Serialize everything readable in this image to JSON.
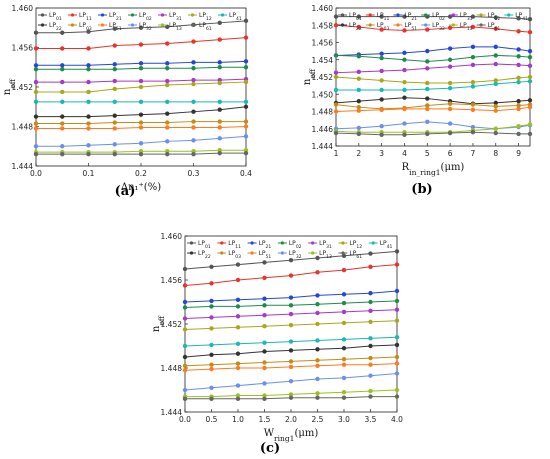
{
  "chart_data": [
    {
      "type": "line",
      "panel_label": "(a)",
      "xlabel": "Δn₁⁺(%)",
      "ylabel": "n_eff",
      "xlim": [
        0,
        0.4
      ],
      "ylim": [
        1.444,
        1.46
      ],
      "xticks": [
        "0.0",
        "0.1",
        "0.2",
        "0.3",
        "0.4"
      ],
      "yticks": [
        "1.444",
        "1.448",
        "1.452",
        "1.456",
        "1.460"
      ],
      "legend_position": "top",
      "x": [
        0,
        0.05,
        0.1,
        0.15,
        0.2,
        0.25,
        0.3,
        0.35,
        0.4
      ],
      "series": [
        {
          "name": "LP01",
          "color": "#555555",
          "values": [
            1.4575,
            1.4575,
            1.4576,
            1.4579,
            1.458,
            1.4581,
            1.4583,
            1.4585,
            1.4587
          ]
        },
        {
          "name": "LP11",
          "color": "#e8332a",
          "values": [
            1.4559,
            1.4559,
            1.4559,
            1.4562,
            1.4563,
            1.4564,
            1.4566,
            1.4568,
            1.457
          ]
        },
        {
          "name": "LP21",
          "color": "#2447d8",
          "values": [
            1.4542,
            1.4542,
            1.4542,
            1.4543,
            1.4544,
            1.4544,
            1.4545,
            1.4545,
            1.4546
          ]
        },
        {
          "name": "LP02",
          "color": "#1e8c4a",
          "values": [
            1.4538,
            1.4538,
            1.4538,
            1.4538,
            1.4539,
            1.4539,
            1.4539,
            1.454,
            1.454
          ]
        },
        {
          "name": "LP31",
          "color": "#a838c8",
          "values": [
            1.4525,
            1.4525,
            1.4525,
            1.4526,
            1.4526,
            1.4526,
            1.4527,
            1.4527,
            1.4528
          ]
        },
        {
          "name": "LP12",
          "color": "#a8a81a",
          "values": [
            1.4515,
            1.4515,
            1.4515,
            1.4518,
            1.452,
            1.4522,
            1.4523,
            1.4524,
            1.4525
          ]
        },
        {
          "name": "LP41",
          "color": "#1ab8b8",
          "values": [
            1.4505,
            1.4505,
            1.4505,
            1.4505,
            1.4505,
            1.4505,
            1.4505,
            1.4505,
            1.4505
          ]
        },
        {
          "name": "LP22",
          "color": "#333333",
          "values": [
            1.449,
            1.449,
            1.449,
            1.4491,
            1.4492,
            1.4493,
            1.4495,
            1.4497,
            1.45
          ]
        },
        {
          "name": "LP03",
          "color": "#c88a14",
          "values": [
            1.4483,
            1.4483,
            1.4483,
            1.4484,
            1.4484,
            1.4484,
            1.4485,
            1.4485,
            1.4485
          ]
        },
        {
          "name": "LP51",
          "color": "#ff7a1e",
          "values": [
            1.4478,
            1.4478,
            1.4478,
            1.4478,
            1.4479,
            1.4479,
            1.4479,
            1.4479,
            1.448
          ]
        },
        {
          "name": "LP32",
          "color": "#6a8ff0",
          "values": [
            1.446,
            1.446,
            1.4461,
            1.4462,
            1.4463,
            1.4465,
            1.4466,
            1.4468,
            1.447
          ]
        },
        {
          "name": "LP13",
          "color": "#9ac21e",
          "values": [
            1.4454,
            1.4454,
            1.4454,
            1.4454,
            1.4455,
            1.4455,
            1.4455,
            1.4456,
            1.4456
          ]
        },
        {
          "name": "LP61",
          "color": "#666666",
          "values": [
            1.4452,
            1.4452,
            1.4452,
            1.4452,
            1.4452,
            1.4452,
            1.4452,
            1.4453,
            1.4453
          ]
        }
      ]
    },
    {
      "type": "line",
      "panel_label": "(b)",
      "xlabel": "R_in_ring1(μm)",
      "ylabel": "n_eff",
      "xlim": [
        1,
        9.5
      ],
      "ylim": [
        1.444,
        1.46
      ],
      "xticks": [
        "1",
        "2",
        "3",
        "4",
        "5",
        "6",
        "7",
        "8",
        "9"
      ],
      "yticks": [
        "1.444",
        "1.446",
        "1.448",
        "1.450",
        "1.452",
        "1.454",
        "1.456",
        "1.458",
        "1.460"
      ],
      "legend_position": "top",
      "x": [
        1,
        2,
        3,
        4,
        5,
        6,
        7,
        8,
        9,
        9.5
      ],
      "series": [
        {
          "name": "LP01",
          "color": "#555555",
          "values": [
            1.459,
            1.459,
            1.459,
            1.459,
            1.459,
            1.459,
            1.459,
            1.4589,
            1.4588,
            1.4587
          ]
        },
        {
          "name": "LP11",
          "color": "#e8332a",
          "values": [
            1.458,
            1.4578,
            1.4575,
            1.4574,
            1.4575,
            1.4577,
            1.4578,
            1.4576,
            1.4573,
            1.4572
          ]
        },
        {
          "name": "LP21",
          "color": "#2447d8",
          "values": [
            1.4545,
            1.4546,
            1.4547,
            1.4548,
            1.455,
            1.4553,
            1.4555,
            1.4555,
            1.4552,
            1.455
          ]
        },
        {
          "name": "LP02",
          "color": "#1e8c4a",
          "values": [
            1.4545,
            1.4544,
            1.4542,
            1.454,
            1.4538,
            1.454,
            1.4543,
            1.4545,
            1.4544,
            1.4543
          ]
        },
        {
          "name": "LP31",
          "color": "#a838c8",
          "values": [
            1.4525,
            1.4526,
            1.4527,
            1.4528,
            1.453,
            1.4532,
            1.4534,
            1.4535,
            1.4534,
            1.4533
          ]
        },
        {
          "name": "LP12",
          "color": "#a8a81a",
          "values": [
            1.452,
            1.4518,
            1.4516,
            1.4514,
            1.4513,
            1.4513,
            1.4514,
            1.4516,
            1.4519,
            1.452
          ]
        },
        {
          "name": "LP41",
          "color": "#1ab8b8",
          "values": [
            1.4505,
            1.4505,
            1.4505,
            1.4505,
            1.4506,
            1.4507,
            1.4509,
            1.4512,
            1.4514,
            1.4515
          ]
        },
        {
          "name": "LP22",
          "color": "#333333",
          "values": [
            1.449,
            1.4492,
            1.4494,
            1.4496,
            1.4495,
            1.4492,
            1.4489,
            1.449,
            1.4492,
            1.4493
          ]
        },
        {
          "name": "LP03",
          "color": "#c88a14",
          "values": [
            1.4488,
            1.4485,
            1.4483,
            1.4484,
            1.4487,
            1.4489,
            1.4488,
            1.4486,
            1.4487,
            1.4488
          ]
        },
        {
          "name": "LP51",
          "color": "#ff7a1e",
          "values": [
            1.448,
            1.4481,
            1.4482,
            1.4483,
            1.4483,
            1.4483,
            1.4482,
            1.4481,
            1.4483,
            1.4485
          ]
        },
        {
          "name": "LP32",
          "color": "#6a8ff0",
          "values": [
            1.446,
            1.4461,
            1.4463,
            1.4466,
            1.4468,
            1.4466,
            1.4462,
            1.446,
            1.4462,
            1.4464
          ]
        },
        {
          "name": "LP13",
          "color": "#9ac21e",
          "values": [
            1.4457,
            1.4456,
            1.4456,
            1.4456,
            1.4456,
            1.4456,
            1.4458,
            1.446,
            1.4463,
            1.4465
          ]
        },
        {
          "name": "LP61",
          "color": "#666666",
          "values": [
            1.4455,
            1.4454,
            1.4453,
            1.4453,
            1.4454,
            1.4455,
            1.4456,
            1.4455,
            1.4454,
            1.4454
          ]
        }
      ]
    },
    {
      "type": "line",
      "panel_label": "(c)",
      "xlabel": "W_ring1(μm)",
      "ylabel": "n_eff",
      "xlim": [
        0,
        4
      ],
      "ylim": [
        1.444,
        1.46
      ],
      "xticks": [
        "0.0",
        "0.5",
        "1.0",
        "1.5",
        "2.0",
        "2.5",
        "3.0",
        "3.5",
        "4.0"
      ],
      "yticks": [
        "1.444",
        "1.448",
        "1.452",
        "1.456",
        "1.460"
      ],
      "legend_position": "top",
      "x": [
        0,
        0.5,
        1,
        1.5,
        2,
        2.5,
        3,
        3.5,
        4
      ],
      "series": [
        {
          "name": "LP01",
          "color": "#555555",
          "values": [
            1.457,
            1.4572,
            1.4574,
            1.4576,
            1.4578,
            1.458,
            1.4582,
            1.4584,
            1.4586
          ]
        },
        {
          "name": "LP11",
          "color": "#e8332a",
          "values": [
            1.4555,
            1.4557,
            1.456,
            1.4562,
            1.4564,
            1.4567,
            1.4569,
            1.4572,
            1.4574
          ]
        },
        {
          "name": "LP21",
          "color": "#2447d8",
          "values": [
            1.454,
            1.4541,
            1.4542,
            1.4543,
            1.4544,
            1.4546,
            1.4547,
            1.4548,
            1.455
          ]
        },
        {
          "name": "LP02",
          "color": "#1e8c4a",
          "values": [
            1.4535,
            1.4536,
            1.4536,
            1.4537,
            1.4537,
            1.4538,
            1.4539,
            1.454,
            1.4541
          ]
        },
        {
          "name": "LP31",
          "color": "#a838c8",
          "values": [
            1.4525,
            1.4526,
            1.4527,
            1.4528,
            1.4529,
            1.453,
            1.4531,
            1.4532,
            1.4533
          ]
        },
        {
          "name": "LP12",
          "color": "#a8a81a",
          "values": [
            1.4515,
            1.4516,
            1.4517,
            1.4518,
            1.4519,
            1.452,
            1.4521,
            1.4522,
            1.4523
          ]
        },
        {
          "name": "LP41",
          "color": "#1ab8b8",
          "values": [
            1.45,
            1.4501,
            1.4502,
            1.4503,
            1.4504,
            1.4505,
            1.4506,
            1.4507,
            1.4508
          ]
        },
        {
          "name": "LP22",
          "color": "#333333",
          "values": [
            1.449,
            1.4492,
            1.4493,
            1.4495,
            1.4496,
            1.4497,
            1.4498,
            1.45,
            1.4501
          ]
        },
        {
          "name": "LP03",
          "color": "#c88a14",
          "values": [
            1.4482,
            1.4483,
            1.4484,
            1.4485,
            1.4486,
            1.4487,
            1.4488,
            1.4489,
            1.449
          ]
        },
        {
          "name": "LP51",
          "color": "#ff7a1e",
          "values": [
            1.4478,
            1.4479,
            1.448,
            1.448,
            1.4481,
            1.4482,
            1.4483,
            1.4483,
            1.4484
          ]
        },
        {
          "name": "LP32",
          "color": "#6a8ff0",
          "values": [
            1.446,
            1.4462,
            1.4464,
            1.4466,
            1.4468,
            1.447,
            1.4471,
            1.4473,
            1.4475
          ]
        },
        {
          "name": "LP13",
          "color": "#9ac21e",
          "values": [
            1.4454,
            1.4454,
            1.4455,
            1.4455,
            1.4456,
            1.4457,
            1.4458,
            1.4459,
            1.446
          ]
        },
        {
          "name": "LP61",
          "color": "#666666",
          "values": [
            1.4452,
            1.4452,
            1.4452,
            1.4452,
            1.4453,
            1.4453,
            1.4453,
            1.4454,
            1.4454
          ]
        }
      ]
    }
  ]
}
